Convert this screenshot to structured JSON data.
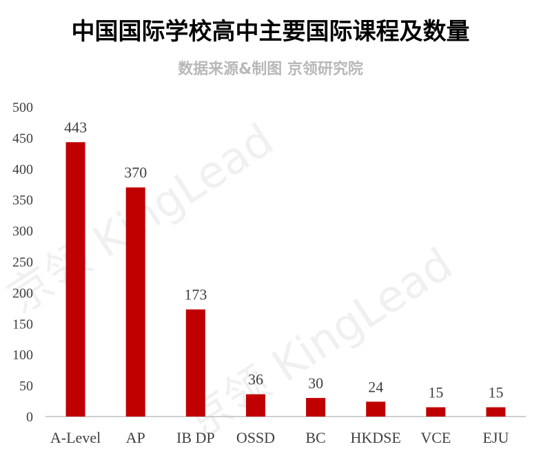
{
  "header": {
    "title": "中国国际学校高中主要国际课程及数量",
    "subtitle": "数据来源&制图 京领研究院"
  },
  "watermarks": [
    "京领 KingLead",
    "京领 KingLead"
  ],
  "colors": {
    "bar": "#c00000",
    "axis": "#bfbfbf",
    "text": "#404040"
  },
  "chart_data": {
    "type": "bar",
    "title": "中国国际学校高中主要国际课程及数量",
    "subtitle": "数据来源&制图 京领研究院",
    "categories": [
      "A-Level",
      "AP",
      "IB DP",
      "OSSD",
      "BC",
      "HKDSE",
      "VCE",
      "EJU"
    ],
    "values": [
      443,
      370,
      173,
      36,
      30,
      24,
      15,
      15
    ],
    "ylim": [
      0,
      500
    ],
    "yticks": [
      0,
      50,
      100,
      150,
      200,
      250,
      300,
      350,
      400,
      450,
      500
    ],
    "grid": false,
    "data_labels": true,
    "xlabel": "",
    "ylabel": ""
  }
}
